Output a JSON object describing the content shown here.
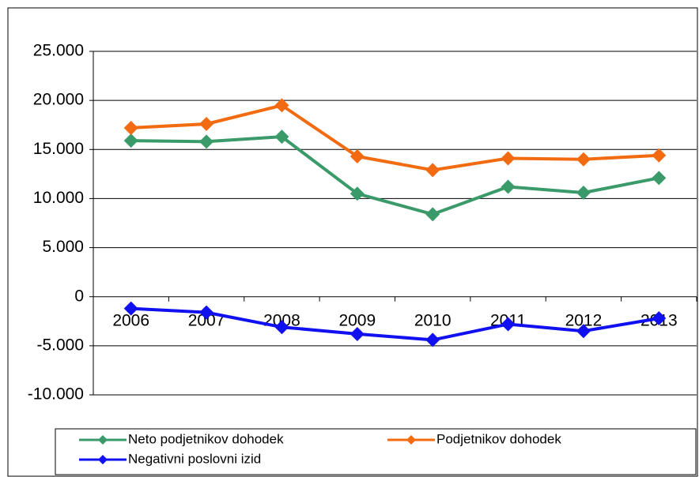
{
  "chart_data": {
    "type": "line",
    "categories": [
      "2006",
      "2007",
      "2008",
      "2009",
      "2010",
      "2011",
      "2012",
      "2013"
    ],
    "series": [
      {
        "name": "Neto podjetnikov dohodek",
        "color": "#3a9a6a",
        "values": [
          15900,
          15800,
          16300,
          10500,
          8400,
          11200,
          10600,
          12100
        ]
      },
      {
        "name": "Podjetnikov dohodek",
        "color": "#f26b10",
        "values": [
          17200,
          17600,
          19500,
          14300,
          12900,
          14100,
          14000,
          14400
        ]
      },
      {
        "name": "Negativni poslovni izid",
        "color": "#1010f0",
        "values": [
          -1200,
          -1600,
          -3100,
          -3800,
          -4400,
          -2800,
          -3500,
          -2200
        ]
      }
    ],
    "ylim": [
      -10000,
      25000
    ],
    "yticks": [
      {
        "value": -10000,
        "label": "-10.000"
      },
      {
        "value": -5000,
        "label": "-5.000"
      },
      0,
      {
        "value": 5000,
        "label": "5.000"
      },
      {
        "value": 10000,
        "label": "10.000"
      },
      {
        "value": 15000,
        "label": "15.000"
      },
      {
        "value": 20000,
        "label": "20.000"
      },
      {
        "value": 25000,
        "label": "25.000"
      }
    ],
    "grid": true,
    "legend": "bottom"
  }
}
